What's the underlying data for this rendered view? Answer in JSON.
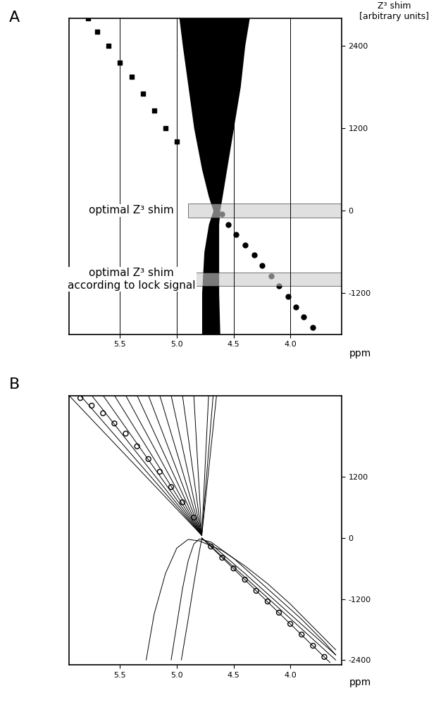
{
  "chart_data": [
    {
      "type": "spectra",
      "panel": "A",
      "x_label": "ppm",
      "y_label": "Z³ shim\n[arbitrary units]",
      "xlim": [
        5.95,
        3.55
      ],
      "ylim": [
        -1800,
        2800
      ],
      "xticks": [
        5.5,
        5.0,
        4.5,
        4.0
      ],
      "yticks": [
        2400,
        1200,
        0,
        -1200
      ],
      "grid": "x",
      "color": "#000000",
      "bands": [
        {
          "label": "optimal Z³ shim",
          "x": 4.9,
          "ylo": -100,
          "yhi": 100
        },
        {
          "label": "optimal Z³ shim\naccording to lock signal",
          "x": 4.9,
          "ylo": -1100,
          "yhi": -900
        }
      ],
      "series": [
        {
          "type": "area",
          "color": "#000000",
          "values": [
            -1800,
            -1200,
            -600,
            -200,
            0,
            200,
            600,
            1200,
            1800,
            2400,
            2800
          ],
          "x": [
            4.78,
            4.78,
            4.76,
            4.72,
            4.68,
            4.72,
            4.78,
            4.85,
            4.9,
            4.95,
            4.98
          ],
          "x2": [
            4.62,
            4.63,
            4.63,
            4.63,
            4.62,
            4.6,
            4.56,
            4.5,
            4.44,
            4.4,
            4.36
          ]
        },
        {
          "type": "scatter",
          "color": "#000000",
          "marker": "s",
          "x": [
            5.78,
            5.7,
            5.6,
            5.5,
            5.4,
            5.3,
            5.2,
            5.1,
            5.0
          ],
          "values": [
            2800,
            2600,
            2400,
            2150,
            1950,
            1700,
            1450,
            1200,
            1000
          ]
        },
        {
          "type": "scatter",
          "color": "#000000",
          "marker": "o",
          "x": [
            4.6,
            4.55,
            4.48,
            4.4,
            4.32,
            4.25,
            4.17,
            4.1,
            4.02,
            3.95,
            3.88,
            3.8
          ],
          "values": [
            -50,
            -200,
            -350,
            -500,
            -650,
            -800,
            -950,
            -1100,
            -1250,
            -1400,
            -1550,
            -1700
          ]
        }
      ]
    },
    {
      "type": "line",
      "panel": "B",
      "x_label": "ppm",
      "xlim": [
        5.95,
        3.55
      ],
      "ylim": [
        -2500,
        2800
      ],
      "xticks": [
        5.5,
        5.0,
        4.5,
        4.0
      ],
      "yticks": [
        1200,
        0,
        -1200,
        -2400
      ],
      "color": "#000000",
      "series": [
        {
          "x": [
            4.78,
            5.95
          ],
          "values": [
            50,
            2800
          ]
        },
        {
          "x": [
            4.78,
            5.85
          ],
          "values": [
            50,
            2800
          ]
        },
        {
          "x": [
            4.78,
            5.75
          ],
          "values": [
            50,
            2800
          ]
        },
        {
          "x": [
            4.78,
            5.65
          ],
          "values": [
            50,
            2800
          ]
        },
        {
          "x": [
            4.78,
            5.55
          ],
          "values": [
            50,
            2800
          ]
        },
        {
          "x": [
            4.78,
            5.45
          ],
          "values": [
            50,
            2800
          ]
        },
        {
          "x": [
            4.78,
            5.35
          ],
          "values": [
            50,
            2800
          ]
        },
        {
          "x": [
            4.78,
            5.25
          ],
          "values": [
            50,
            2800
          ]
        },
        {
          "x": [
            4.78,
            5.15
          ],
          "values": [
            50,
            2800
          ]
        },
        {
          "x": [
            4.78,
            5.05
          ],
          "values": [
            50,
            2800
          ]
        },
        {
          "x": [
            4.78,
            4.95
          ],
          "values": [
            50,
            2800
          ]
        },
        {
          "x": [
            4.78,
            4.85
          ],
          "values": [
            50,
            2800
          ]
        },
        {
          "x": [
            4.78,
            4.72
          ],
          "values": [
            50,
            2800
          ]
        },
        {
          "x": [
            4.78,
            4.68
          ],
          "values": [
            50,
            2800
          ]
        },
        {
          "x": [
            4.78,
            4.65
          ],
          "values": [
            50,
            2800
          ]
        },
        {
          "x": [
            4.78,
            3.65
          ],
          "values": [
            0,
            -2450
          ]
        },
        {
          "x": [
            4.78,
            3.6
          ],
          "values": [
            0,
            -2400
          ]
        },
        {
          "x": [
            5.27,
            5.2,
            5.1,
            5.0,
            4.9,
            4.8,
            4.6,
            4.4,
            4.2,
            4.0,
            3.8,
            3.6
          ],
          "values": [
            -2400,
            -1500,
            -700,
            -200,
            -30,
            -60,
            -250,
            -550,
            -900,
            -1300,
            -1750,
            -2200
          ]
        },
        {
          "x": [
            5.05,
            5.0,
            4.95,
            4.9,
            4.85,
            4.8,
            4.7,
            4.5,
            4.3,
            4.1,
            3.9,
            3.7,
            3.6
          ],
          "values": [
            -2400,
            -1700,
            -1000,
            -450,
            -120,
            -20,
            -80,
            -400,
            -800,
            -1200,
            -1600,
            -2050,
            -2300
          ]
        },
        {
          "x": [
            4.96,
            4.9,
            4.85,
            4.8,
            4.78,
            4.7,
            4.4,
            4.0,
            3.6
          ],
          "values": [
            -2400,
            -1600,
            -900,
            -250,
            -20,
            -120,
            -700,
            -1500,
            -2300
          ]
        },
        {
          "type": "scatter",
          "marker": "o",
          "line_style": "none",
          "x": [
            4.7,
            4.6,
            4.5,
            4.4,
            4.3,
            4.2,
            4.1,
            4.0,
            3.9,
            3.8,
            3.7
          ],
          "values": [
            -170,
            -390,
            -600,
            -820,
            -1040,
            -1250,
            -1470,
            -1690,
            -1900,
            -2120,
            -2340
          ]
        },
        {
          "type": "scatter",
          "marker": "o",
          "line_style": "none",
          "x": [
            4.85,
            4.95,
            5.05,
            5.15,
            5.25,
            5.35,
            5.45,
            5.55,
            5.65,
            5.75,
            5.85
          ],
          "values": [
            400,
            700,
            1000,
            1300,
            1550,
            1800,
            2050,
            2250,
            2450,
            2600,
            2750
          ]
        }
      ]
    }
  ]
}
